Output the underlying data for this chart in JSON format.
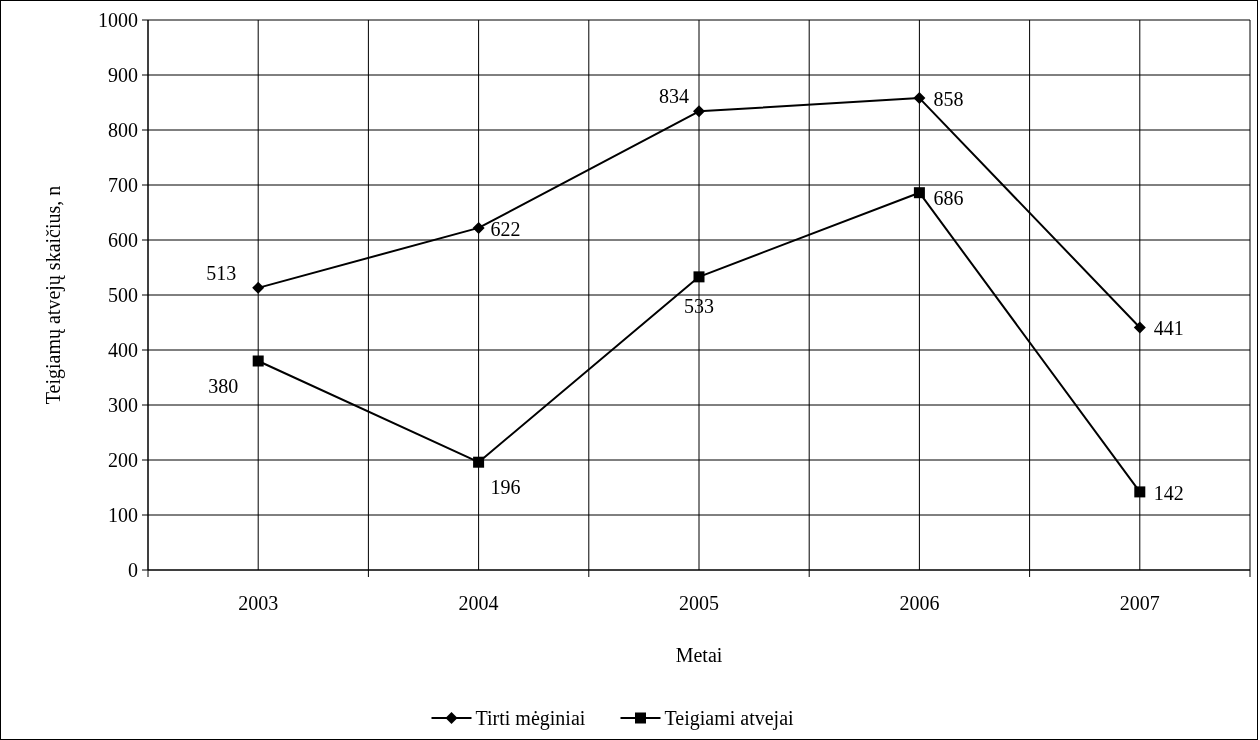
{
  "chart_data": {
    "type": "line",
    "xlabel": "Metai",
    "ylabel": "Teigiamų atvejų skaičius, n",
    "categories": [
      "2003",
      "2004",
      "2005",
      "2006",
      "2007"
    ],
    "series": [
      {
        "name": "Tirti mėginiai",
        "color": "#000000",
        "marker": "diamond",
        "values": [
          513,
          622,
          834,
          858,
          441
        ]
      },
      {
        "name": "Teigiami atvejai",
        "color": "#000000",
        "marker": "square",
        "values": [
          380,
          196,
          533,
          686,
          142
        ]
      }
    ],
    "ylim": [
      0,
      1000
    ],
    "yticks": [
      0,
      100,
      200,
      300,
      400,
      500,
      600,
      700,
      800,
      900,
      1000
    ],
    "grid": true,
    "data_labels": true,
    "legend": "bottom",
    "line_style": "solid"
  }
}
